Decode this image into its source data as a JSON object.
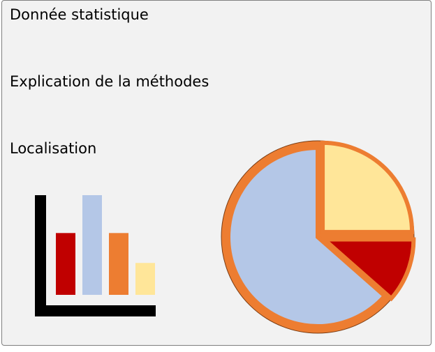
{
  "card": {
    "lines": [
      "Donnée statistique",
      "Explication de la méthodes",
      "Localisation"
    ]
  },
  "illustrations": {
    "bar_icon": {
      "icon": "bar-chart-icon",
      "bars": [
        {
          "value": 0.62,
          "color": "#c00000"
        },
        {
          "value": 1.0,
          "color": "#b4c7e7"
        },
        {
          "value": 0.62,
          "color": "#ed7d31"
        },
        {
          "value": 0.32,
          "color": "#ffe699"
        }
      ],
      "axis_color": "#000000"
    },
    "pie_icon": {
      "icon": "pie-chart-icon",
      "slices": [
        {
          "fraction": 0.25,
          "color": "#ffe699",
          "exploded": true
        },
        {
          "fraction": 0.115,
          "color": "#c00000",
          "exploded": true
        },
        {
          "fraction": 0.635,
          "color": "#b4c7e7",
          "exploded": false
        }
      ],
      "ring_color": "#ed7d31",
      "outline_color": "#7a3d14"
    }
  }
}
